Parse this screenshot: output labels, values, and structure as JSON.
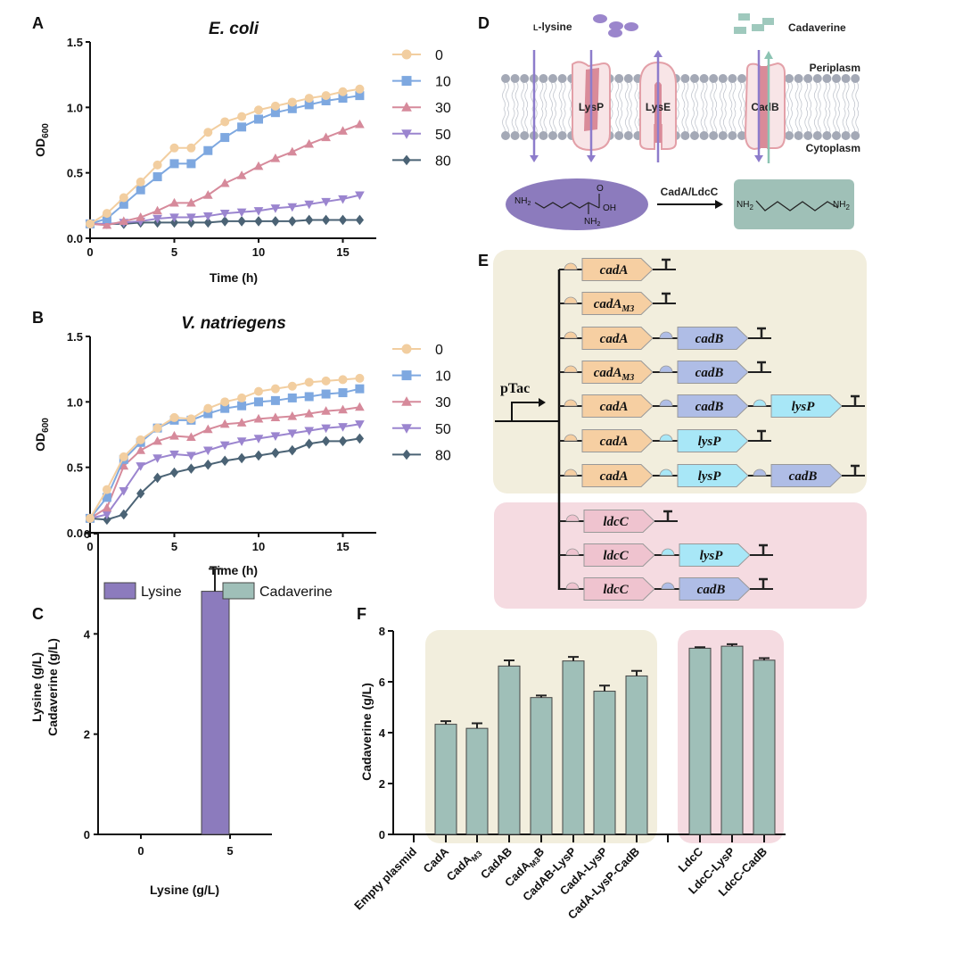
{
  "panels": {
    "a": "A",
    "b": "B",
    "c": "C",
    "d": "D",
    "e": "E",
    "f": "F"
  },
  "colors": {
    "s0": "#f2cea0",
    "s10": "#7ea8e0",
    "s30": "#d68a9b",
    "s50": "#9b85cf",
    "s80": "#4b6375",
    "bar_teal": "#9fbfb8",
    "bar_purple": "#8c7bbd",
    "bg_yellow": "#f2eedd",
    "bg_pink": "#f5dbe1",
    "cadA": "#f6cfa2",
    "cadB": "#afbde6",
    "lysP": "#a8e7f7",
    "ldcC": "#efc3cf"
  },
  "chart_data": [
    {
      "id": "A",
      "type": "line",
      "title": "E. coli",
      "xlabel": "Time (h)",
      "ylabel": {
        "main": "OD",
        "sub": "600"
      },
      "xlim": [
        0,
        16
      ],
      "ylim": [
        0,
        1.5
      ],
      "xticks": [
        0,
        5,
        10,
        15
      ],
      "yticks": [
        "0.0",
        "0.5",
        "1.0",
        "1.5"
      ],
      "legend": "right",
      "x": [
        0,
        1,
        2,
        3,
        4,
        5,
        6,
        7,
        8,
        9,
        10,
        11,
        12,
        13,
        14,
        15,
        16
      ],
      "series": [
        {
          "name": "0",
          "marker": "circle",
          "values": [
            0.11,
            0.19,
            0.31,
            0.43,
            0.56,
            0.69,
            0.69,
            0.81,
            0.89,
            0.93,
            0.98,
            1.01,
            1.04,
            1.07,
            1.09,
            1.12,
            1.14
          ]
        },
        {
          "name": "10",
          "marker": "square",
          "values": [
            0.11,
            0.15,
            0.26,
            0.37,
            0.47,
            0.57,
            0.57,
            0.67,
            0.77,
            0.85,
            0.91,
            0.96,
            0.99,
            1.02,
            1.05,
            1.07,
            1.09
          ]
        },
        {
          "name": "30",
          "marker": "triangle-up",
          "values": [
            0.11,
            0.1,
            0.13,
            0.16,
            0.21,
            0.27,
            0.27,
            0.33,
            0.42,
            0.48,
            0.55,
            0.61,
            0.66,
            0.72,
            0.77,
            0.82,
            0.87
          ]
        },
        {
          "name": "50",
          "marker": "triangle-down",
          "values": [
            0.11,
            0.11,
            0.12,
            0.13,
            0.15,
            0.16,
            0.16,
            0.17,
            0.19,
            0.2,
            0.21,
            0.23,
            0.24,
            0.26,
            0.28,
            0.3,
            0.33
          ]
        },
        {
          "name": "80",
          "marker": "diamond",
          "values": [
            0.11,
            0.11,
            0.11,
            0.12,
            0.12,
            0.12,
            0.12,
            0.12,
            0.13,
            0.13,
            0.13,
            0.13,
            0.13,
            0.14,
            0.14,
            0.14,
            0.14
          ]
        }
      ]
    },
    {
      "id": "B",
      "type": "line",
      "title": "V. natriegens",
      "xlabel": "Time (h)",
      "ylabel": {
        "main": "OD",
        "sub": "600"
      },
      "xlim": [
        0,
        16
      ],
      "ylim": [
        0,
        1.5
      ],
      "xticks": [
        0,
        5,
        10,
        15
      ],
      "yticks": [
        "0.0",
        "0.5",
        "1.0",
        "1.5"
      ],
      "legend": "right",
      "x": [
        0,
        1,
        2,
        3,
        4,
        5,
        6,
        7,
        8,
        9,
        10,
        11,
        12,
        13,
        14,
        15,
        16
      ],
      "series": [
        {
          "name": "0",
          "marker": "circle",
          "values": [
            0.11,
            0.33,
            0.58,
            0.71,
            0.8,
            0.88,
            0.87,
            0.95,
            1.0,
            1.03,
            1.08,
            1.1,
            1.12,
            1.15,
            1.16,
            1.17,
            1.18
          ]
        },
        {
          "name": "10",
          "marker": "square",
          "values": [
            0.11,
            0.27,
            0.56,
            0.69,
            0.8,
            0.86,
            0.86,
            0.91,
            0.95,
            0.97,
            1.0,
            1.01,
            1.03,
            1.04,
            1.06,
            1.07,
            1.1
          ]
        },
        {
          "name": "30",
          "marker": "triangle-up",
          "values": [
            0.11,
            0.19,
            0.51,
            0.63,
            0.7,
            0.74,
            0.73,
            0.79,
            0.83,
            0.84,
            0.87,
            0.88,
            0.89,
            0.91,
            0.93,
            0.94,
            0.96
          ]
        },
        {
          "name": "50",
          "marker": "triangle-down",
          "values": [
            0.11,
            0.14,
            0.32,
            0.51,
            0.57,
            0.6,
            0.59,
            0.63,
            0.67,
            0.7,
            0.72,
            0.74,
            0.76,
            0.78,
            0.8,
            0.81,
            0.83
          ]
        },
        {
          "name": "80",
          "marker": "diamond",
          "values": [
            0.11,
            0.1,
            0.14,
            0.3,
            0.42,
            0.46,
            0.49,
            0.52,
            0.55,
            0.57,
            0.59,
            0.61,
            0.63,
            0.68,
            0.7,
            0.7,
            0.72
          ]
        }
      ]
    },
    {
      "id": "C",
      "type": "bar",
      "categories": [
        "0",
        "5"
      ],
      "xlabel": "Lysine (g/L)",
      "ylabel": [
        "Lysine (g/L)",
        "Cadaverine (g/L)"
      ],
      "ylim": [
        0,
        6
      ],
      "yticks": [
        0,
        2,
        4,
        6
      ],
      "legend": "top",
      "series": [
        {
          "name": "Lysine",
          "values": [
            0,
            4.85
          ],
          "errors": [
            0,
            0.45
          ]
        },
        {
          "name": "Cadaverine",
          "values": [
            0,
            0
          ],
          "errors": [
            0,
            0
          ]
        }
      ]
    },
    {
      "id": "F",
      "type": "bar",
      "ylabel": "Cadaverine (g/L)",
      "ylim": [
        0,
        8
      ],
      "yticks": [
        0,
        2,
        4,
        6,
        8
      ],
      "categories": [
        {
          "text": "Empty plasmid",
          "group": "none"
        },
        {
          "text": "CadA",
          "group": "cadA"
        },
        {
          "text": "CadA",
          "sub": "M3",
          "group": "cadA"
        },
        {
          "text": "CadAB",
          "group": "cadA"
        },
        {
          "text": "CadA",
          "sub": "M3",
          "after": "B",
          "group": "cadA"
        },
        {
          "text": "CadAB-LysP",
          "group": "cadA"
        },
        {
          "text": "CadA-LysP",
          "group": "cadA"
        },
        {
          "text": "CadA-LysP-CadB",
          "group": "cadA"
        },
        {
          "text": "LdcC",
          "group": "ldcC"
        },
        {
          "text": "LdcC-LysP",
          "group": "ldcC"
        },
        {
          "text": "LdcC-CadB",
          "group": "ldcC"
        }
      ],
      "values": [
        0,
        4.33,
        4.17,
        6.62,
        5.38,
        6.82,
        5.63,
        6.23,
        7.32,
        7.4,
        6.85
      ],
      "errors": [
        0,
        0.12,
        0.2,
        0.22,
        0.08,
        0.16,
        0.22,
        0.2,
        0.04,
        0.08,
        0.08
      ]
    }
  ],
  "diagram_d": {
    "lysine_label": {
      "small": "L",
      "rest": "-lysine"
    },
    "cadaverine_label": "Cadaverine",
    "periplasm": "Periplasm",
    "cytoplasm": "Cytoplasm",
    "proteins": [
      "LysP",
      "LysE",
      "CadB"
    ],
    "enzyme": "CadA/LdcC",
    "chem": {
      "amine": "NH",
      "sub": "2",
      "hydroxyl": "OH",
      "oxygen": "O"
    }
  },
  "diagram_e": {
    "promoter": "pTac",
    "rows": [
      {
        "group": "cadA",
        "genes": [
          {
            "name": "cadA",
            "type": "cadA"
          }
        ]
      },
      {
        "group": "cadA",
        "genes": [
          {
            "name": "cadA",
            "sub": "M3",
            "type": "cadA"
          }
        ]
      },
      {
        "group": "cadA",
        "genes": [
          {
            "name": "cadA",
            "type": "cadA"
          },
          {
            "name": "cadB",
            "type": "cadB"
          }
        ]
      },
      {
        "group": "cadA",
        "genes": [
          {
            "name": "cadA",
            "sub": "M3",
            "type": "cadA"
          },
          {
            "name": "cadB",
            "type": "cadB"
          }
        ]
      },
      {
        "group": "cadA",
        "genes": [
          {
            "name": "cadA",
            "type": "cadA"
          },
          {
            "name": "cadB",
            "type": "cadB"
          },
          {
            "name": "lysP",
            "type": "lysP"
          }
        ]
      },
      {
        "group": "cadA",
        "genes": [
          {
            "name": "cadA",
            "type": "cadA"
          },
          {
            "name": "lysP",
            "type": "lysP"
          }
        ]
      },
      {
        "group": "cadA",
        "genes": [
          {
            "name": "cadA",
            "type": "cadA"
          },
          {
            "name": "lysP",
            "type": "lysP"
          },
          {
            "name": "cadB",
            "type": "cadB"
          }
        ]
      },
      {
        "group": "ldcC",
        "genes": [
          {
            "name": "ldcC",
            "type": "ldcC"
          }
        ]
      },
      {
        "group": "ldcC",
        "genes": [
          {
            "name": "ldcC",
            "type": "ldcC"
          },
          {
            "name": "lysP",
            "type": "lysP"
          }
        ]
      },
      {
        "group": "ldcC",
        "genes": [
          {
            "name": "ldcC",
            "type": "ldcC"
          },
          {
            "name": "cadB",
            "type": "cadB"
          }
        ]
      }
    ]
  }
}
